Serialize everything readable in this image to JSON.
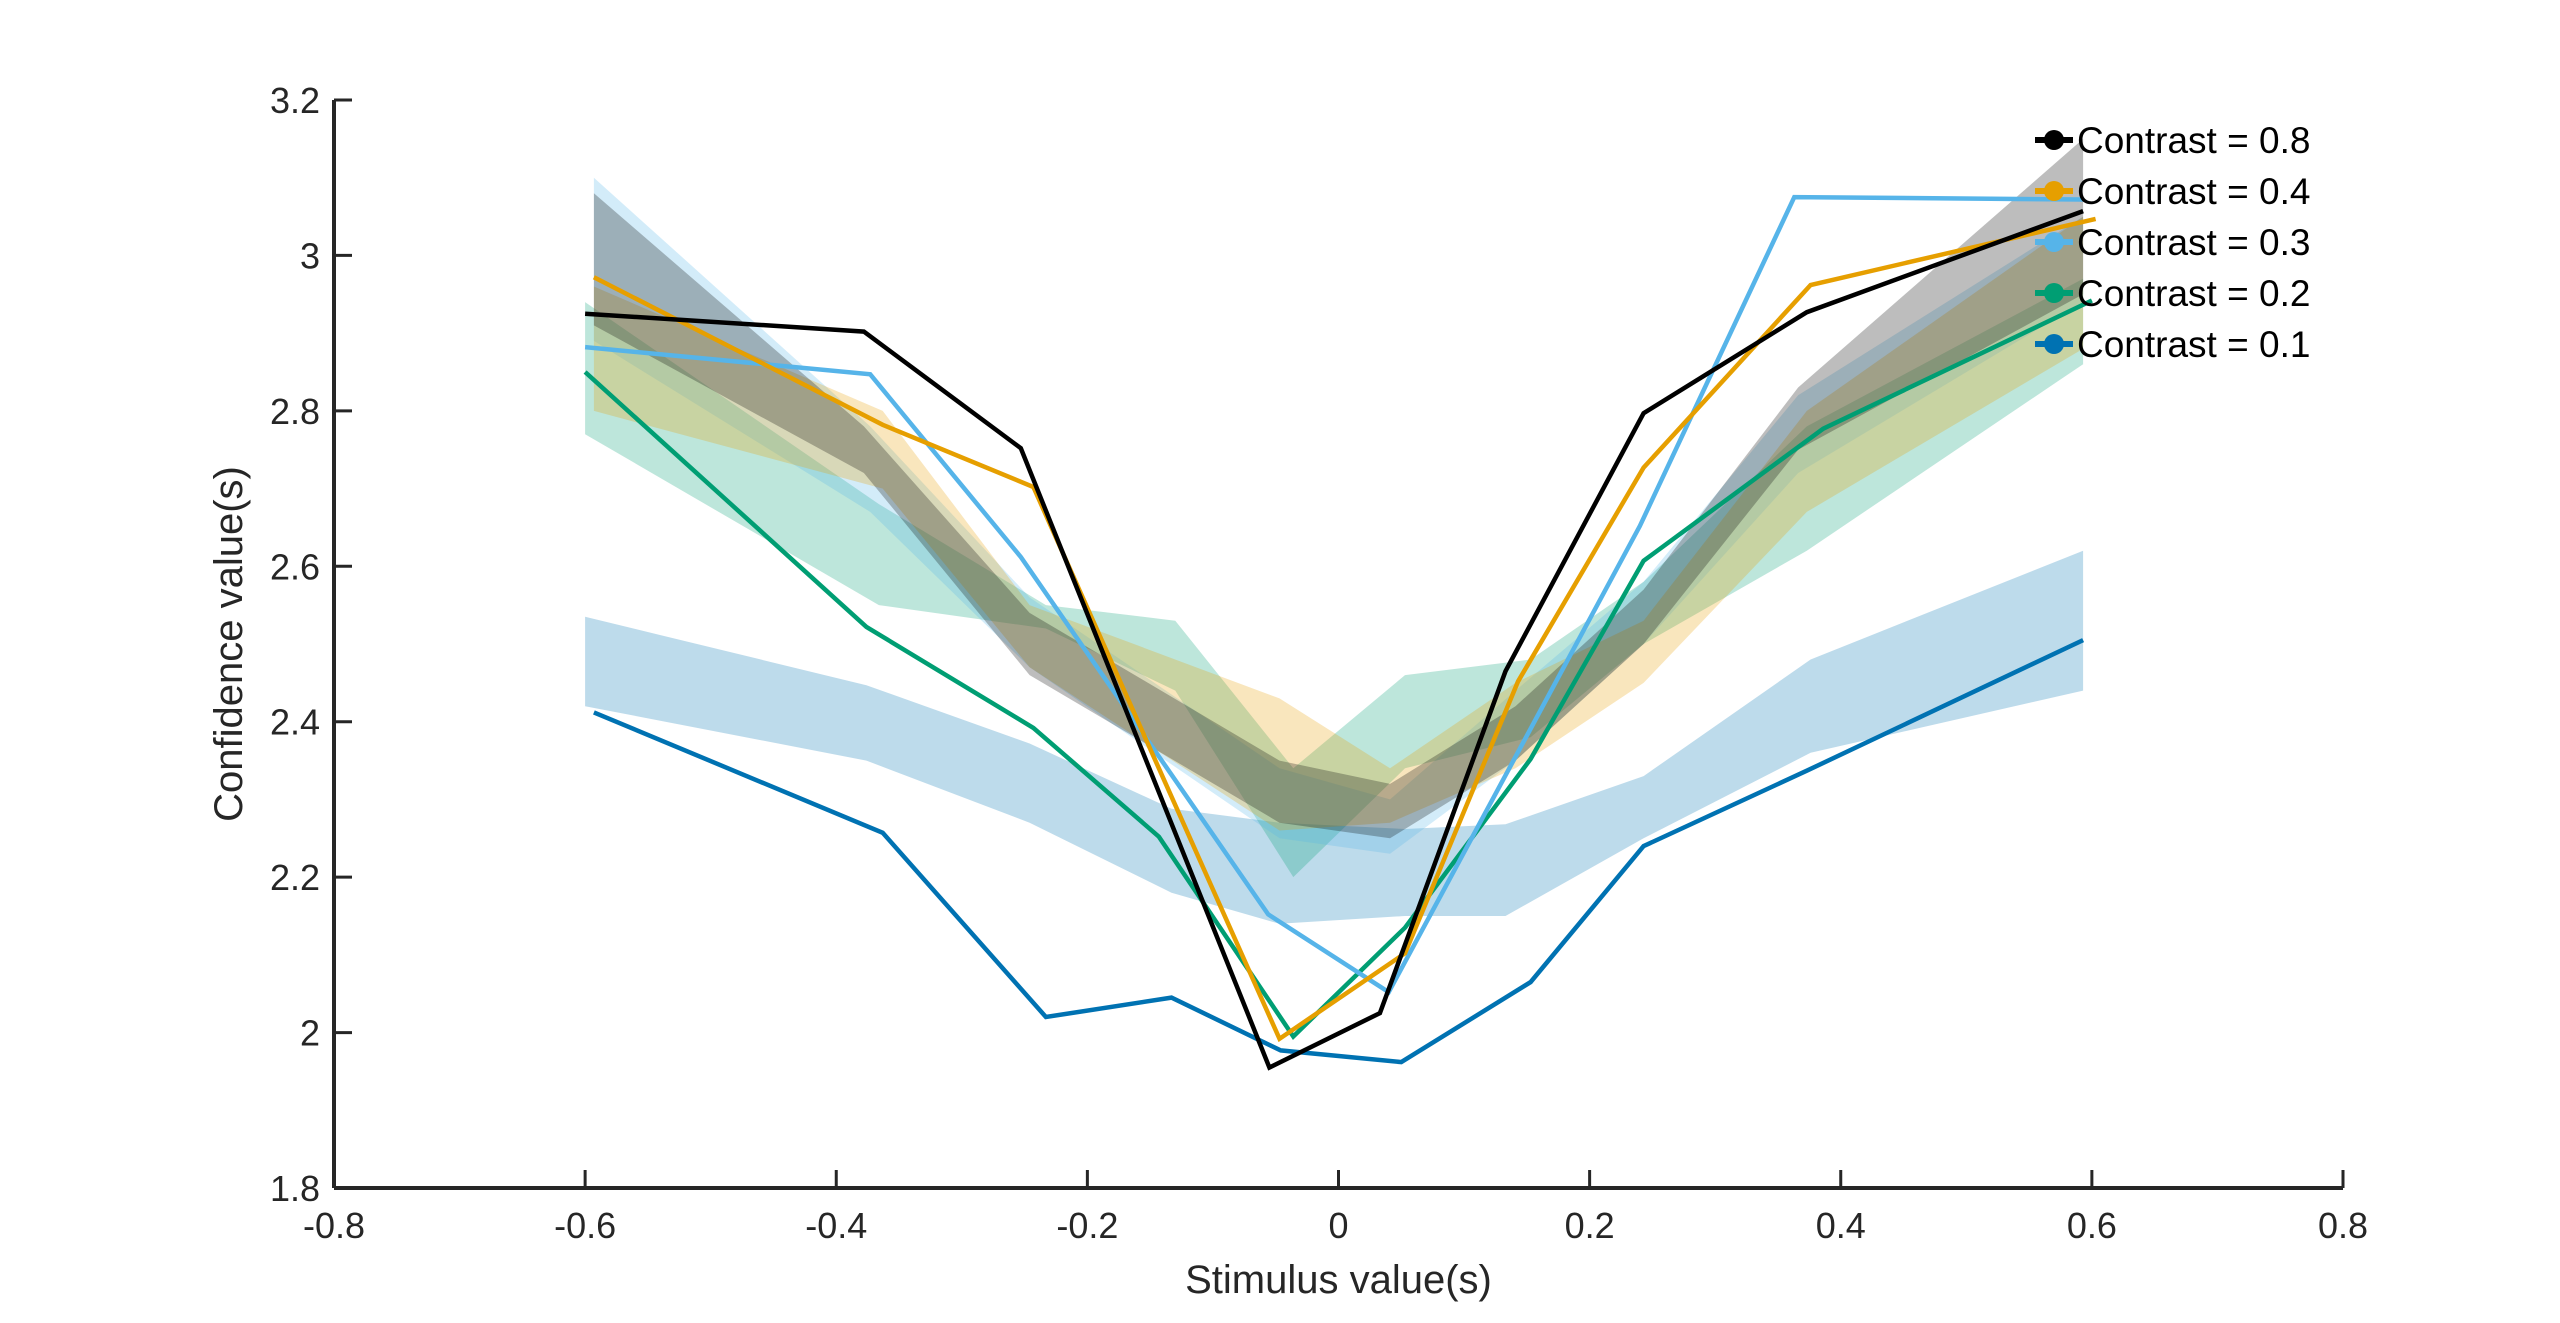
{
  "chart_data": {
    "type": "line",
    "xlabel": "Stimulus value(s)",
    "ylabel": "Confidence value(s)",
    "xlim": [
      -0.8,
      0.8
    ],
    "ylim": [
      1.8,
      3.2
    ],
    "xticks": [
      "-0.8",
      "-0.6",
      "-0.4",
      "-0.2",
      "0",
      "0.2",
      "0.4",
      "0.6",
      "0.8"
    ],
    "yticks": [
      "1.8",
      "2",
      "2.2",
      "2.4",
      "2.6",
      "2.8",
      "3",
      "3.2"
    ],
    "grid": false,
    "legend_position": "top-right",
    "series": [
      {
        "name": "Contrast = 0.8",
        "color": "#000000",
        "line": {
          "x": [
            -0.6,
            -0.378,
            -0.253,
            -0.055,
            0.033,
            0.133,
            0.243,
            0.373,
            0.593
          ],
          "y": [
            2.925,
            2.902,
            2.752,
            1.955,
            2.025,
            2.465,
            2.797,
            2.927,
            3.057
          ]
        },
        "band": {
          "x": [
            -0.593,
            -0.378,
            -0.246,
            -0.047,
            0.041,
            0.141,
            0.243,
            0.366,
            0.593
          ],
          "upper": [
            3.08,
            2.78,
            2.54,
            2.35,
            2.32,
            2.42,
            2.57,
            2.83,
            3.15
          ],
          "lower": [
            2.91,
            2.72,
            2.46,
            2.27,
            2.25,
            2.35,
            2.5,
            2.75,
            2.95
          ]
        }
      },
      {
        "name": "Contrast = 0.4",
        "color": "#E69F00",
        "line": {
          "x": [
            -0.593,
            -0.363,
            -0.243,
            -0.047,
            0.053,
            0.143,
            0.243,
            0.376,
            0.603
          ],
          "y": [
            2.972,
            2.782,
            2.702,
            1.992,
            2.102,
            2.452,
            2.727,
            2.962,
            3.047
          ]
        },
        "band": {
          "x": [
            -0.593,
            -0.363,
            -0.246,
            -0.047,
            0.041,
            0.141,
            0.243,
            0.373,
            0.593
          ],
          "upper": [
            2.96,
            2.8,
            2.55,
            2.43,
            2.34,
            2.45,
            2.53,
            2.8,
            3.05
          ],
          "lower": [
            2.8,
            2.7,
            2.47,
            2.26,
            2.27,
            2.34,
            2.45,
            2.67,
            2.88
          ]
        }
      },
      {
        "name": "Contrast = 0.3",
        "color": "#56B4E9",
        "line": {
          "x": [
            -0.6,
            -0.373,
            -0.253,
            -0.056,
            0.04,
            0.14,
            0.24,
            0.363,
            0.593
          ],
          "y": [
            2.882,
            2.847,
            2.612,
            2.152,
            2.052,
            2.352,
            2.652,
            3.075,
            3.072
          ]
        },
        "band": {
          "x": [
            -0.593,
            -0.373,
            -0.246,
            -0.047,
            0.041,
            0.141,
            0.243,
            0.366,
            0.593
          ],
          "upper": [
            3.1,
            2.78,
            2.56,
            2.34,
            2.3,
            2.44,
            2.58,
            2.82,
            3.05
          ],
          "lower": [
            2.89,
            2.67,
            2.47,
            2.25,
            2.23,
            2.35,
            2.5,
            2.72,
            2.94
          ]
        }
      },
      {
        "name": "Contrast = 0.2",
        "color": "#009E73",
        "line": {
          "x": [
            -0.6,
            -0.376,
            -0.243,
            -0.143,
            -0.036,
            0.053,
            0.153,
            0.243,
            0.386,
            0.6
          ],
          "y": [
            2.85,
            2.522,
            2.392,
            2.252,
            1.995,
            2.135,
            2.352,
            2.607,
            2.777,
            2.942
          ]
        },
        "band": {
          "x": [
            -0.6,
            -0.366,
            -0.233,
            -0.13,
            -0.036,
            0.053,
            0.153,
            0.243,
            0.373,
            0.593
          ],
          "upper": [
            2.94,
            2.68,
            2.55,
            2.53,
            2.34,
            2.46,
            2.48,
            2.58,
            2.78,
            2.97
          ],
          "lower": [
            2.77,
            2.55,
            2.52,
            2.44,
            2.2,
            2.34,
            2.38,
            2.5,
            2.62,
            2.86
          ]
        }
      },
      {
        "name": "Contrast = 0.1",
        "color": "#0072B2",
        "line": {
          "x": [
            -0.593,
            -0.363,
            -0.233,
            -0.133,
            -0.046,
            0.05,
            0.153,
            0.243,
            0.373,
            0.593
          ],
          "y": [
            2.412,
            2.257,
            2.02,
            2.045,
            1.977,
            1.962,
            2.065,
            2.24,
            2.337,
            2.505
          ]
        },
        "band": {
          "x": [
            -0.6,
            -0.376,
            -0.246,
            -0.133,
            -0.047,
            0.053,
            0.133,
            0.243,
            0.376,
            0.593
          ],
          "upper": [
            2.535,
            2.447,
            2.372,
            2.288,
            2.27,
            2.262,
            2.268,
            2.33,
            2.48,
            2.62
          ],
          "lower": [
            2.42,
            2.35,
            2.27,
            2.18,
            2.14,
            2.15,
            2.15,
            2.25,
            2.36,
            2.44
          ]
        }
      }
    ]
  }
}
